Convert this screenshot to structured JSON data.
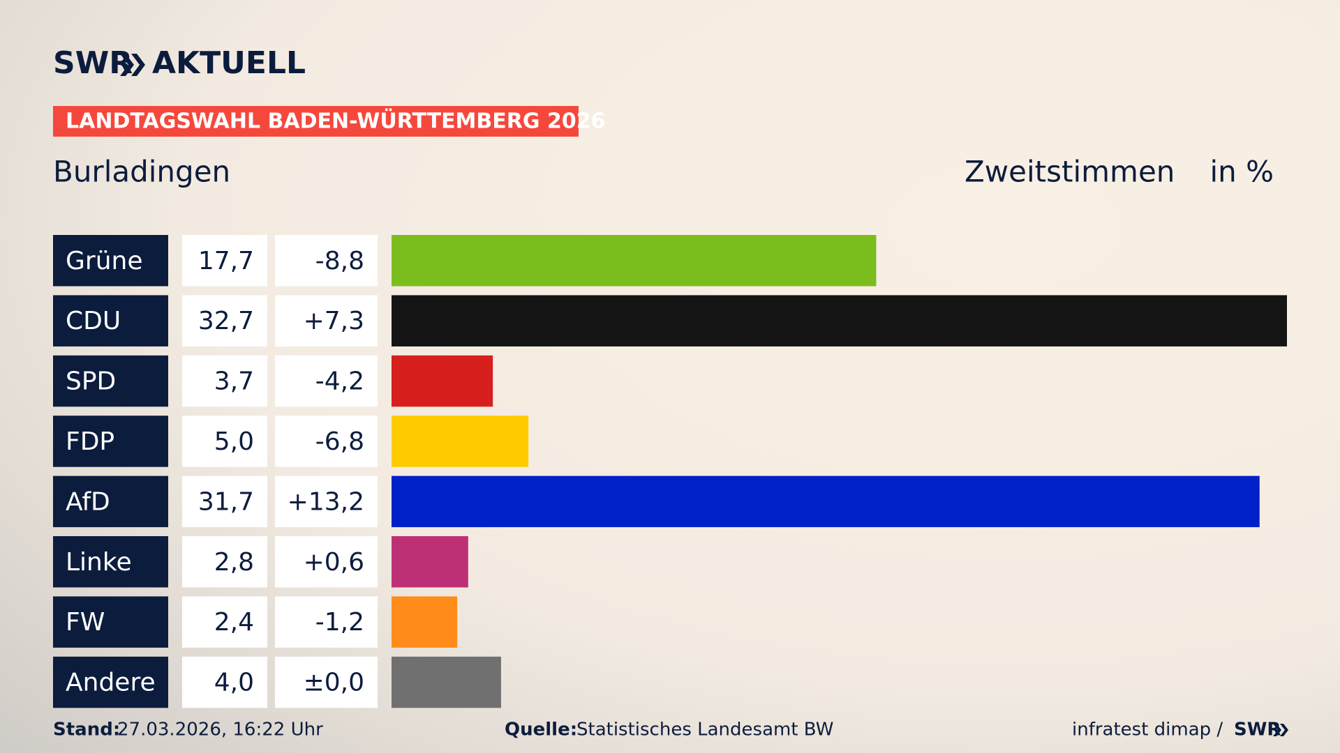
{
  "brand": {
    "logo": "SWR",
    "name": "AKTUELL"
  },
  "chart_data": {
    "type": "bar",
    "subtitle": "LANDTAGSWAHL BADEN-WÜRTTEMBERG 2026",
    "title": "Burladingen",
    "measure": "Zweitstimmen",
    "unit": "in %",
    "categories": [
      "Grüne",
      "CDU",
      "SPD",
      "FDP",
      "AfD",
      "Linke",
      "FW",
      "Andere"
    ],
    "values": [
      17.7,
      32.7,
      3.7,
      5.0,
      31.7,
      2.8,
      2.4,
      4.0
    ],
    "value_labels": [
      "17,7",
      "32,7",
      "3,7",
      "5,0",
      "31,7",
      "2,8",
      "2,4",
      "4,0"
    ],
    "changes": [
      -8.8,
      7.3,
      -4.2,
      -6.8,
      13.2,
      0.6,
      -1.2,
      0.0
    ],
    "change_labels": [
      "-8,8",
      "+7,3",
      "-4,2",
      "-6,8",
      "+13,2",
      "+0,6",
      "-1,2",
      "±0,0"
    ],
    "colors": [
      "#7cbd1e",
      "#141414",
      "#d71f1d",
      "#ffcc00",
      "#0021c8",
      "#be3075",
      "#ff8c1a",
      "#707070"
    ],
    "xlim": [
      0,
      32.7
    ]
  },
  "footer": {
    "stand_label": "Stand:",
    "stand": "27.03.2026, 16:22 Uhr",
    "source_label": "Quelle:",
    "source": "Statistisches Landesamt BW",
    "credit": "infratest dimap /",
    "credit_logo": "SWR"
  }
}
